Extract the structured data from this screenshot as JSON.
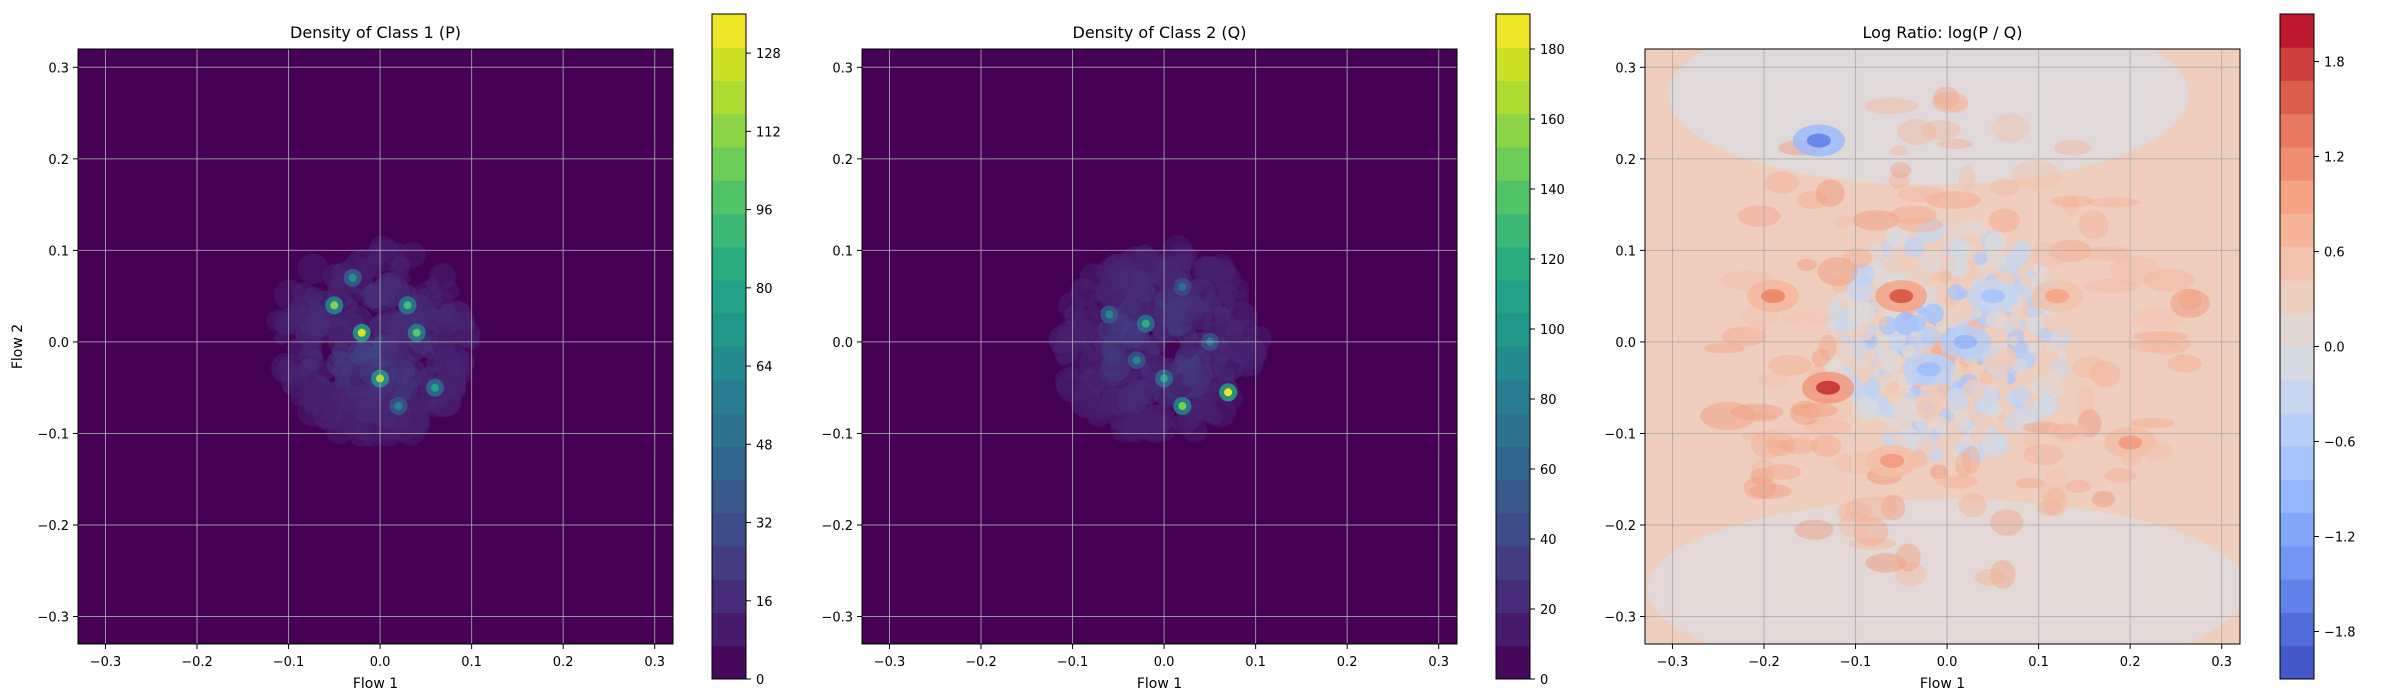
{
  "chart_data": [
    {
      "type": "heatmap",
      "title": "Density of Class 1 (P)",
      "xlabel": "Flow 1",
      "ylabel": "Flow 2",
      "xlim": [
        -0.33,
        0.32
      ],
      "ylim": [
        -0.33,
        0.32
      ],
      "xticks": [
        "−0.3",
        "−0.2",
        "−0.1",
        "0.0",
        "0.1",
        "0.2",
        "0.3"
      ],
      "yticks": [
        "−0.3",
        "−0.2",
        "−0.1",
        "0.0",
        "0.1",
        "0.2",
        "0.3"
      ],
      "grid": true,
      "colormap": "viridis",
      "colorbar": {
        "min": 0,
        "max": 136,
        "ticks": [
          "0",
          "16",
          "32",
          "48",
          "64",
          "80",
          "96",
          "112",
          "128"
        ]
      },
      "hotspots": [
        {
          "x": -0.05,
          "y": 0.04,
          "value": 110
        },
        {
          "x": -0.02,
          "y": 0.01,
          "value": 128
        },
        {
          "x": 0.03,
          "y": 0.04,
          "value": 95
        },
        {
          "x": 0.0,
          "y": -0.04,
          "value": 120
        },
        {
          "x": 0.04,
          "y": 0.01,
          "value": 100
        },
        {
          "x": 0.06,
          "y": -0.05,
          "value": 80
        },
        {
          "x": -0.03,
          "y": 0.07,
          "value": 70
        },
        {
          "x": 0.02,
          "y": -0.07,
          "value": 60
        }
      ]
    },
    {
      "type": "heatmap",
      "title": "Density of Class 2 (Q)",
      "xlabel": "Flow 1",
      "ylabel": "",
      "xlim": [
        -0.33,
        0.32
      ],
      "ylim": [
        -0.33,
        0.32
      ],
      "xticks": [
        "−0.3",
        "−0.2",
        "−0.1",
        "0.0",
        "0.1",
        "0.2",
        "0.3"
      ],
      "yticks": [
        "−0.3",
        "−0.2",
        "−0.1",
        "0.0",
        "0.1",
        "0.2",
        "0.3"
      ],
      "grid": true,
      "colormap": "viridis",
      "colorbar": {
        "min": 0,
        "max": 190,
        "ticks": [
          "0",
          "20",
          "40",
          "60",
          "80",
          "100",
          "120",
          "140",
          "160",
          "180"
        ]
      },
      "hotspots": [
        {
          "x": 0.02,
          "y": -0.07,
          "value": 150
        },
        {
          "x": 0.07,
          "y": -0.055,
          "value": 185
        },
        {
          "x": -0.02,
          "y": 0.02,
          "value": 120
        },
        {
          "x": 0.0,
          "y": -0.04,
          "value": 110
        },
        {
          "x": -0.06,
          "y": 0.03,
          "value": 90
        },
        {
          "x": 0.05,
          "y": 0.0,
          "value": 80
        },
        {
          "x": 0.02,
          "y": 0.06,
          "value": 70
        },
        {
          "x": -0.03,
          "y": -0.02,
          "value": 85
        }
      ]
    },
    {
      "type": "heatmap",
      "title": "Log Ratio: log(P / Q)",
      "xlabel": "Flow 1",
      "ylabel": "",
      "xlim": [
        -0.33,
        0.32
      ],
      "ylim": [
        -0.33,
        0.32
      ],
      "xticks": [
        "−0.3",
        "−0.2",
        "−0.1",
        "0.0",
        "0.1",
        "0.2",
        "0.3"
      ],
      "yticks": [
        "−0.3",
        "−0.2",
        "−0.1",
        "0.0",
        "0.1",
        "0.2",
        "0.3"
      ],
      "grid": true,
      "colormap": "coolwarm",
      "colorbar": {
        "min": -2.1,
        "max": 2.1,
        "ticks": [
          "−1.8",
          "−1.2",
          "−0.6",
          "0.0",
          "0.6",
          "1.2",
          "1.8"
        ],
        "tick_values": [
          -1.8,
          -1.2,
          -0.6,
          0.0,
          0.6,
          1.2,
          1.8
        ]
      },
      "hotspots": [
        {
          "x": -0.14,
          "y": 0.22,
          "value": -1.5
        },
        {
          "x": -0.13,
          "y": -0.05,
          "value": 1.8
        },
        {
          "x": -0.05,
          "y": 0.05,
          "value": 1.6
        },
        {
          "x": -0.19,
          "y": 0.05,
          "value": 1.2
        },
        {
          "x": 0.02,
          "y": 0.0,
          "value": -0.9
        },
        {
          "x": -0.02,
          "y": -0.03,
          "value": -0.8
        },
        {
          "x": 0.05,
          "y": 0.05,
          "value": -0.7
        },
        {
          "x": 0.2,
          "y": -0.11,
          "value": 1.0
        },
        {
          "x": 0.12,
          "y": 0.05,
          "value": 0.9
        },
        {
          "x": -0.06,
          "y": -0.13,
          "value": 1.0
        }
      ]
    }
  ]
}
